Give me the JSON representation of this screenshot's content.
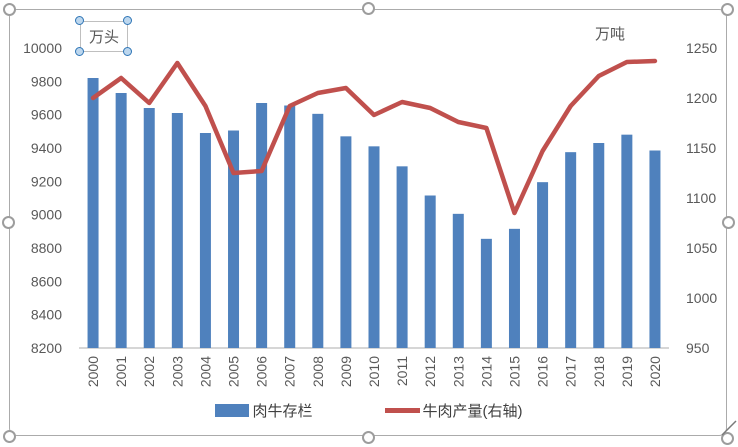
{
  "chart": {
    "left_axis_title": "万头",
    "right_axis_title": "万吨",
    "legend": [
      {
        "label": "肉牛存栏",
        "type": "bar"
      },
      {
        "label": "牛肉产量(右轴)",
        "type": "line"
      }
    ]
  },
  "colors": {
    "bar": "#4f81bd",
    "line": "#c0504d",
    "axis_text": "#595959",
    "axis_line": "#c9c9c9",
    "chart_border": "#ababab",
    "handle_border": "#9d9d9d",
    "textbox_handle_fill": "#bdd7ee",
    "textbox_handle_border": "#2e75b6"
  },
  "chart_data": {
    "type": "bar",
    "title": "",
    "categories": [
      "2000",
      "2001",
      "2002",
      "2003",
      "2004",
      "2005",
      "2006",
      "2007",
      "2008",
      "2009",
      "2010",
      "2011",
      "2012",
      "2013",
      "2014",
      "2015",
      "2016",
      "2017",
      "2018",
      "2019",
      "2020"
    ],
    "series": [
      {
        "name": "肉牛存栏",
        "type": "bar",
        "axis": "left",
        "values": [
          9820,
          9730,
          9640,
          9610,
          9490,
          9505,
          9670,
          9655,
          9605,
          9470,
          9410,
          9290,
          9115,
          9005,
          8855,
          8915,
          9195,
          9375,
          9430,
          9480,
          9385
        ]
      },
      {
        "name": "牛肉产量(右轴)",
        "type": "line",
        "axis": "right",
        "values": [
          1200,
          1220,
          1195,
          1235,
          1192,
          1125,
          1127,
          1192,
          1205,
          1210,
          1183,
          1196,
          1190,
          1176,
          1170,
          1085,
          1147,
          1192,
          1222,
          1236,
          1237
        ]
      }
    ],
    "left_axis": {
      "title": "万头",
      "min": 8200,
      "max": 10000,
      "step": 200,
      "ticks": [
        "8200",
        "8400",
        "8600",
        "8800",
        "9000",
        "9200",
        "9400",
        "9600",
        "9800",
        "10000"
      ]
    },
    "right_axis": {
      "title": "万吨",
      "min": 950,
      "max": 1250,
      "step": 50,
      "ticks": [
        "950",
        "1000",
        "1050",
        "1100",
        "1150",
        "1200",
        "1250"
      ]
    },
    "legend_position": "bottom",
    "gridlines": false
  }
}
